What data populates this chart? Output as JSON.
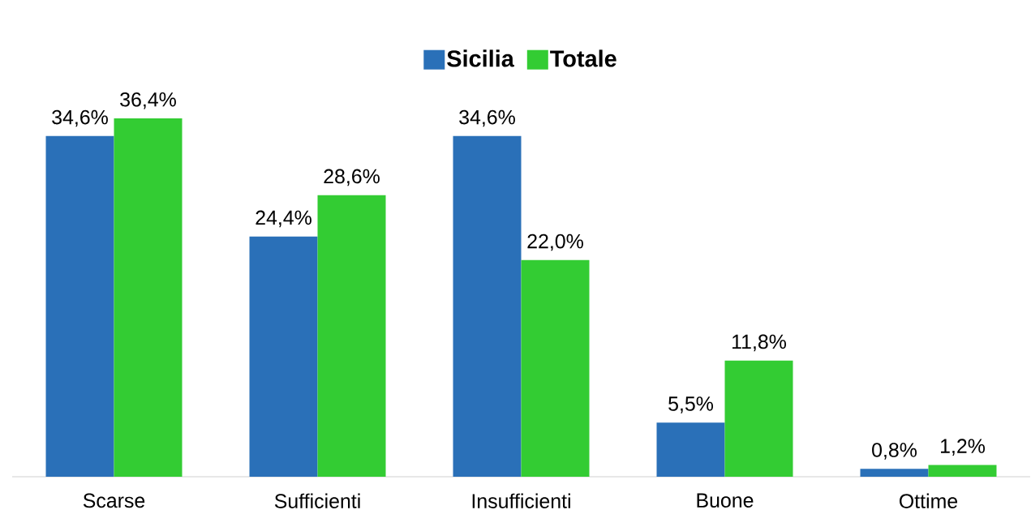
{
  "chart_data": {
    "type": "bar",
    "categories": [
      "Scarse",
      "Sufficienti",
      "Insufficienti",
      "Buone",
      "Ottime"
    ],
    "series": [
      {
        "name": "Sicilia",
        "color": "#2a70b8",
        "values": [
          34.6,
          24.4,
          34.6,
          5.5,
          0.8
        ],
        "value_labels": [
          "34,6%",
          "24,4%",
          "34,6%",
          "5,5%",
          "0,8%"
        ]
      },
      {
        "name": "Totale",
        "color": "#33cc33",
        "values": [
          36.4,
          28.6,
          22.0,
          11.8,
          1.2
        ],
        "value_labels": [
          "36,4%",
          "28,6%",
          "22,0%",
          "11,8%",
          "1,2%"
        ]
      }
    ],
    "legend": "top",
    "grid": false
  }
}
